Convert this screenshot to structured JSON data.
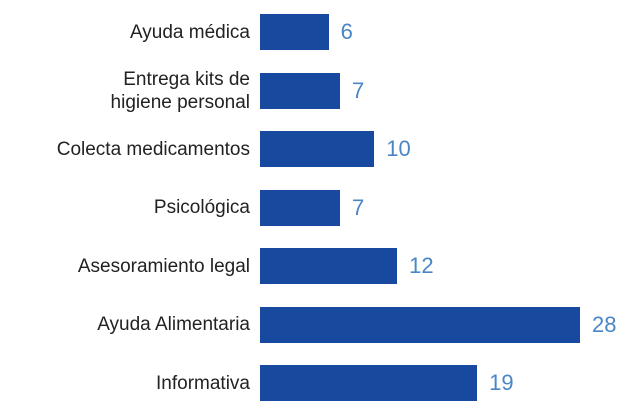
{
  "chart_data": {
    "type": "bar",
    "orientation": "horizontal",
    "categories": [
      "Ayuda médica",
      "Entrega kits de higiene personal",
      "Colecta medicamentos",
      "Psicológica",
      "Asesoramiento legal",
      "Ayuda Alimentaria",
      "Informativa"
    ],
    "values": [
      6,
      7,
      10,
      7,
      12,
      28,
      19
    ],
    "color": "#174a9f"
  }
}
